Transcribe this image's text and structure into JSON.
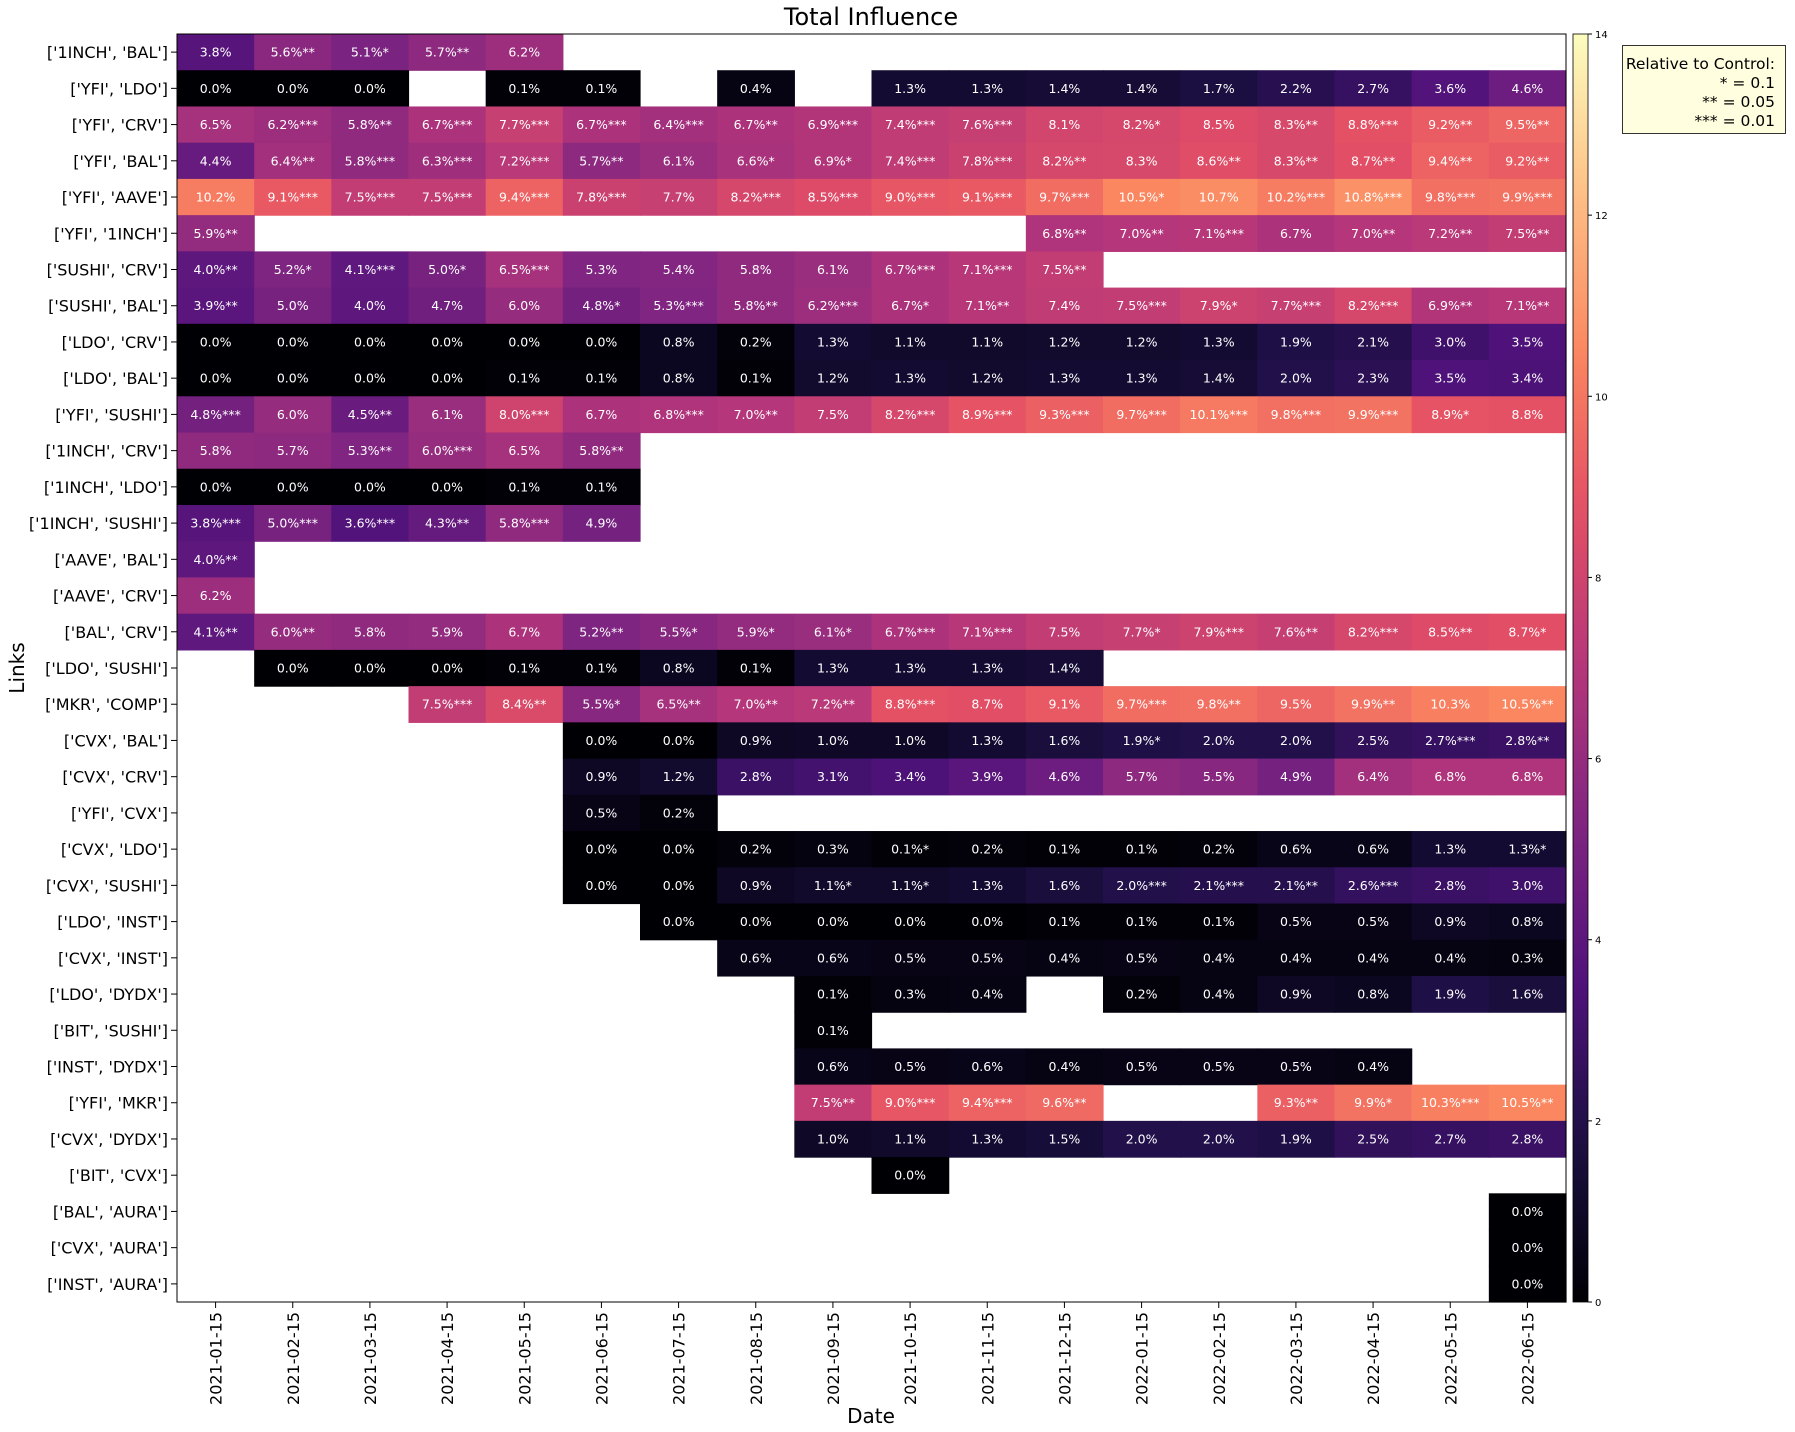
{
  "chart_data": {
    "type": "heatmap",
    "title": "Total Influence",
    "xlabel": "Date",
    "ylabel": "Links",
    "x": [
      "2021-01-15",
      "2021-02-15",
      "2021-03-15",
      "2021-04-15",
      "2021-05-15",
      "2021-06-15",
      "2021-07-15",
      "2021-08-15",
      "2021-09-15",
      "2021-10-15",
      "2021-11-15",
      "2021-12-15",
      "2022-01-15",
      "2022-02-15",
      "2022-03-15",
      "2022-04-15",
      "2022-05-15",
      "2022-06-15"
    ],
    "y": [
      "['1INCH', 'BAL']",
      "['YFI', 'LDO']",
      "['YFI', 'CRV']",
      "['YFI', 'BAL']",
      "['YFI', 'AAVE']",
      "['YFI', '1INCH']",
      "['SUSHI', 'CRV']",
      "['SUSHI', 'BAL']",
      "['LDO', 'CRV']",
      "['LDO', 'BAL']",
      "['YFI', 'SUSHI']",
      "['1INCH', 'CRV']",
      "['1INCH', 'LDO']",
      "['1INCH', 'SUSHI']",
      "['AAVE', 'BAL']",
      "['AAVE', 'CRV']",
      "['BAL', 'CRV']",
      "['LDO', 'SUSHI']",
      "['MKR', 'COMP']",
      "['CVX', 'BAL']",
      "['CVX', 'CRV']",
      "['YFI', 'CVX']",
      "['CVX', 'LDO']",
      "['CVX', 'SUSHI']",
      "['LDO', 'INST']",
      "['CVX', 'INST']",
      "['LDO', 'DYDX']",
      "['BIT', 'SUSHI']",
      "['INST', 'DYDX']",
      "['YFI', 'MKR']",
      "['CVX', 'DYDX']",
      "['BIT', 'CVX']",
      "['BAL', 'AURA']",
      "['CVX', 'AURA']",
      "['INST', 'AURA']"
    ],
    "cells": [
      [
        "3.8%",
        "5.6%**",
        "5.1%*",
        "5.7%**",
        "6.2%",
        "",
        "",
        "",
        "",
        "",
        "",
        "",
        "",
        "",
        "",
        "",
        "",
        ""
      ],
      [
        "0.0%",
        "0.0%",
        "0.0%",
        "",
        "0.1%",
        "0.1%",
        "",
        "0.4%",
        "",
        "1.3%",
        "1.3%",
        "1.4%",
        "1.4%",
        "1.7%",
        "2.2%",
        "2.7%",
        "3.6%",
        "4.6%"
      ],
      [
        "6.5%",
        "6.2%***",
        "5.8%**",
        "6.7%***",
        "7.7%***",
        "6.7%***",
        "6.4%***",
        "6.7%**",
        "6.9%***",
        "7.4%***",
        "7.6%***",
        "8.1%",
        "8.2%*",
        "8.5%",
        "8.3%**",
        "8.8%***",
        "9.2%**",
        "9.5%**"
      ],
      [
        "4.4%",
        "6.4%**",
        "5.8%***",
        "6.3%***",
        "7.2%***",
        "5.7%**",
        "6.1%",
        "6.6%*",
        "6.9%*",
        "7.4%***",
        "7.8%***",
        "8.2%**",
        "8.3%",
        "8.6%**",
        "8.3%**",
        "8.7%**",
        "9.4%**",
        "9.2%**"
      ],
      [
        "10.2%",
        "9.1%***",
        "7.5%***",
        "7.5%***",
        "9.4%***",
        "7.8%***",
        "7.7%",
        "8.2%***",
        "8.5%***",
        "9.0%***",
        "9.1%***",
        "9.7%***",
        "10.5%*",
        "10.7%",
        "10.2%***",
        "10.8%***",
        "9.8%***",
        "9.9%***"
      ],
      [
        "5.9%**",
        "",
        "",
        "",
        "",
        "",
        "",
        "",
        "",
        "",
        "",
        "6.8%**",
        "7.0%**",
        "7.1%***",
        "6.7%",
        "7.0%**",
        "7.2%**",
        "7.5%**"
      ],
      [
        "4.0%**",
        "5.2%*",
        "4.1%***",
        "5.0%*",
        "6.5%***",
        "5.3%",
        "5.4%",
        "5.8%",
        "6.1%",
        "6.7%***",
        "7.1%***",
        "7.5%**",
        "",
        "",
        "",
        "",
        "",
        ""
      ],
      [
        "3.9%**",
        "5.0%",
        "4.0%",
        "4.7%",
        "6.0%",
        "4.8%*",
        "5.3%***",
        "5.8%**",
        "6.2%***",
        "6.7%*",
        "7.1%**",
        "7.4%",
        "7.5%***",
        "7.9%*",
        "7.7%***",
        "8.2%***",
        "6.9%**",
        "7.1%**"
      ],
      [
        "0.0%",
        "0.0%",
        "0.0%",
        "0.0%",
        "0.0%",
        "0.0%",
        "0.8%",
        "0.2%",
        "1.3%",
        "1.1%",
        "1.1%",
        "1.2%",
        "1.2%",
        "1.3%",
        "1.9%",
        "2.1%",
        "3.0%",
        "3.5%"
      ],
      [
        "0.0%",
        "0.0%",
        "0.0%",
        "0.0%",
        "0.1%",
        "0.1%",
        "0.8%",
        "0.1%",
        "1.2%",
        "1.3%",
        "1.2%",
        "1.3%",
        "1.3%",
        "1.4%",
        "2.0%",
        "2.3%",
        "3.5%",
        "3.4%"
      ],
      [
        "4.8%***",
        "6.0%",
        "4.5%**",
        "6.1%",
        "8.0%***",
        "6.7%",
        "6.8%***",
        "7.0%**",
        "7.5%",
        "8.2%***",
        "8.9%***",
        "9.3%***",
        "9.7%***",
        "10.1%***",
        "9.8%***",
        "9.9%***",
        "8.9%*",
        "8.8%"
      ],
      [
        "5.8%",
        "5.7%",
        "5.3%**",
        "6.0%***",
        "6.5%",
        "5.8%**",
        "",
        "",
        "",
        "",
        "",
        "",
        "",
        "",
        "",
        "",
        "",
        ""
      ],
      [
        "0.0%",
        "0.0%",
        "0.0%",
        "0.0%",
        "0.1%",
        "0.1%",
        "",
        "",
        "",
        "",
        "",
        "",
        "",
        "",
        "",
        "",
        "",
        ""
      ],
      [
        "3.8%***",
        "5.0%***",
        "3.6%***",
        "4.3%**",
        "5.8%***",
        "4.9%",
        "",
        "",
        "",
        "",
        "",
        "",
        "",
        "",
        "",
        "",
        "",
        ""
      ],
      [
        "4.0%**",
        "",
        "",
        "",
        "",
        "",
        "",
        "",
        "",
        "",
        "",
        "",
        "",
        "",
        "",
        "",
        "",
        ""
      ],
      [
        "6.2%",
        "",
        "",
        "",
        "",
        "",
        "",
        "",
        "",
        "",
        "",
        "",
        "",
        "",
        "",
        "",
        "",
        ""
      ],
      [
        "4.1%**",
        "6.0%**",
        "5.8%",
        "5.9%",
        "6.7%",
        "5.2%**",
        "5.5%*",
        "5.9%*",
        "6.1%*",
        "6.7%***",
        "7.1%***",
        "7.5%",
        "7.7%*",
        "7.9%***",
        "7.6%**",
        "8.2%***",
        "8.5%**",
        "8.7%*"
      ],
      [
        "",
        "0.0%",
        "0.0%",
        "0.0%",
        "0.1%",
        "0.1%",
        "0.8%",
        "0.1%",
        "1.3%",
        "1.3%",
        "1.3%",
        "1.4%",
        "",
        "",
        "",
        "",
        "",
        ""
      ],
      [
        "",
        "",
        "",
        "7.5%***",
        "8.4%**",
        "5.5%*",
        "6.5%**",
        "7.0%**",
        "7.2%**",
        "8.8%***",
        "8.7%",
        "9.1%",
        "9.7%***",
        "9.8%**",
        "9.5%",
        "9.9%**",
        "10.3%",
        "10.5%**"
      ],
      [
        "",
        "",
        "",
        "",
        "",
        "0.0%",
        "0.0%",
        "0.9%",
        "1.0%",
        "1.0%",
        "1.3%",
        "1.6%",
        "1.9%*",
        "2.0%",
        "2.0%",
        "2.5%",
        "2.7%***",
        "2.8%**"
      ],
      [
        "",
        "",
        "",
        "",
        "",
        "0.9%",
        "1.2%",
        "2.8%",
        "3.1%",
        "3.4%",
        "3.9%",
        "4.6%",
        "5.7%",
        "5.5%",
        "4.9%",
        "6.4%",
        "6.8%",
        "6.8%"
      ],
      [
        "",
        "",
        "",
        "",
        "",
        "0.5%",
        "0.2%",
        "",
        "",
        "",
        "",
        "",
        "",
        "",
        "",
        "",
        "",
        ""
      ],
      [
        "",
        "",
        "",
        "",
        "",
        "0.0%",
        "0.0%",
        "0.2%",
        "0.3%",
        "0.1%*",
        "0.2%",
        "0.1%",
        "0.1%",
        "0.2%",
        "0.6%",
        "0.6%",
        "1.3%",
        "1.3%*"
      ],
      [
        "",
        "",
        "",
        "",
        "",
        "0.0%",
        "0.0%",
        "0.9%",
        "1.1%*",
        "1.1%*",
        "1.3%",
        "1.6%",
        "2.0%***",
        "2.1%***",
        "2.1%**",
        "2.6%***",
        "2.8%",
        "3.0%"
      ],
      [
        "",
        "",
        "",
        "",
        "",
        "",
        "0.0%",
        "0.0%",
        "0.0%",
        "0.0%",
        "0.0%",
        "0.1%",
        "0.1%",
        "0.1%",
        "0.5%",
        "0.5%",
        "0.9%",
        "0.8%"
      ],
      [
        "",
        "",
        "",
        "",
        "",
        "",
        "",
        "0.6%",
        "0.6%",
        "0.5%",
        "0.5%",
        "0.4%",
        "0.5%",
        "0.4%",
        "0.4%",
        "0.4%",
        "0.4%",
        "0.3%"
      ],
      [
        "",
        "",
        "",
        "",
        "",
        "",
        "",
        "",
        "0.1%",
        "0.3%",
        "0.4%",
        "",
        "0.2%",
        "0.4%",
        "0.9%",
        "0.8%",
        "1.9%",
        "1.6%"
      ],
      [
        "",
        "",
        "",
        "",
        "",
        "",
        "",
        "",
        "0.1%",
        "",
        "",
        "",
        "",
        "",
        "",
        "",
        "",
        ""
      ],
      [
        "",
        "",
        "",
        "",
        "",
        "",
        "",
        "",
        "0.6%",
        "0.5%",
        "0.6%",
        "0.4%",
        "0.5%",
        "0.5%",
        "0.5%",
        "0.4%",
        "",
        ""
      ],
      [
        "",
        "",
        "",
        "",
        "",
        "",
        "",
        "",
        "7.5%**",
        "9.0%***",
        "9.4%***",
        "9.6%**",
        "",
        "",
        "9.3%**",
        "9.9%*",
        "10.3%***",
        "10.5%**"
      ],
      [
        "",
        "",
        "",
        "",
        "",
        "",
        "",
        "",
        "1.0%",
        "1.1%",
        "1.3%",
        "1.5%",
        "2.0%",
        "2.0%",
        "1.9%",
        "2.5%",
        "2.7%",
        "2.8%"
      ],
      [
        "",
        "",
        "",
        "",
        "",
        "",
        "",
        "",
        "",
        "0.0%",
        "",
        "",
        "",
        "",
        "",
        "",
        "",
        ""
      ],
      [
        "",
        "",
        "",
        "",
        "",
        "",
        "",
        "",
        "",
        "",
        "",
        "",
        "",
        "",
        "",
        "",
        "",
        "0.0%"
      ],
      [
        "",
        "",
        "",
        "",
        "",
        "",
        "",
        "",
        "",
        "",
        "",
        "",
        "",
        "",
        "",
        "",
        "",
        "0.0%"
      ],
      [
        "",
        "",
        "",
        "",
        "",
        "",
        "",
        "",
        "",
        "",
        "",
        "",
        "",
        "",
        "",
        "",
        "",
        "0.0%"
      ]
    ],
    "colormap": "magma",
    "vmin": 0,
    "vmax": 14,
    "colorbar_ticks": [
      0,
      2,
      4,
      6,
      8,
      10,
      12,
      14
    ],
    "legend_placement": "top-right, outside plot"
  },
  "legend": {
    "title": "Relative to Control:",
    "lines": [
      "* = 0.1",
      "** = 0.05",
      "*** = 0.01"
    ]
  }
}
